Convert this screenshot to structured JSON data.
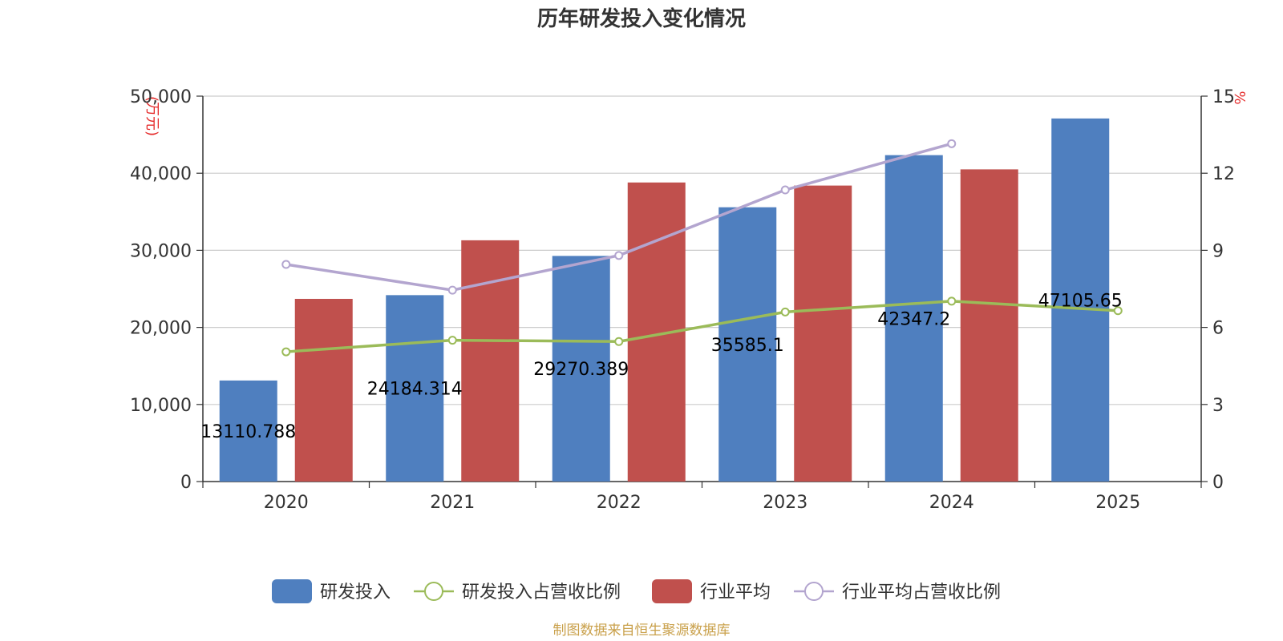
{
  "chart_data": {
    "type": "bar",
    "title": "历年研发投入变化情况",
    "categories": [
      "2020",
      "2021",
      "2022",
      "2023",
      "2024",
      "2025"
    ],
    "y_left": {
      "unit": "(万元)",
      "ticks": [
        "0",
        "10,000",
        "20,000",
        "30,000",
        "40,000",
        "50,000"
      ],
      "ylim": [
        0,
        50000
      ]
    },
    "y_right": {
      "unit": "%",
      "ticks": [
        "0",
        "3",
        "6",
        "9",
        "12",
        "15"
      ],
      "ylim": [
        0,
        15
      ]
    },
    "series": [
      {
        "name": "研发投入",
        "type": "bar",
        "axis": "left",
        "color": "#4f7fbf",
        "values": [
          13110.788,
          24184.314,
          29270.389,
          35585.1,
          42347.2,
          47105.65
        ],
        "labels": [
          "13110.788",
          "24184.314",
          "29270.389",
          "35585.1",
          "42347.2",
          "47105.65"
        ]
      },
      {
        "name": "研发投入占营收比例",
        "type": "line",
        "axis": "right",
        "color": "#9bbb59",
        "values": [
          5.05,
          5.5,
          5.45,
          6.6,
          7.02,
          6.65
        ]
      },
      {
        "name": "行业平均",
        "type": "bar",
        "axis": "left",
        "color": "#c0504d",
        "values": [
          23700,
          31300,
          38800,
          38400,
          40500,
          null
        ]
      },
      {
        "name": "行业平均占营收比例",
        "type": "line",
        "axis": "right",
        "color": "#b3a5cf",
        "values": [
          8.45,
          7.45,
          8.8,
          11.35,
          13.15,
          null
        ]
      }
    ]
  },
  "source": "制图数据来自恒生聚源数据库"
}
